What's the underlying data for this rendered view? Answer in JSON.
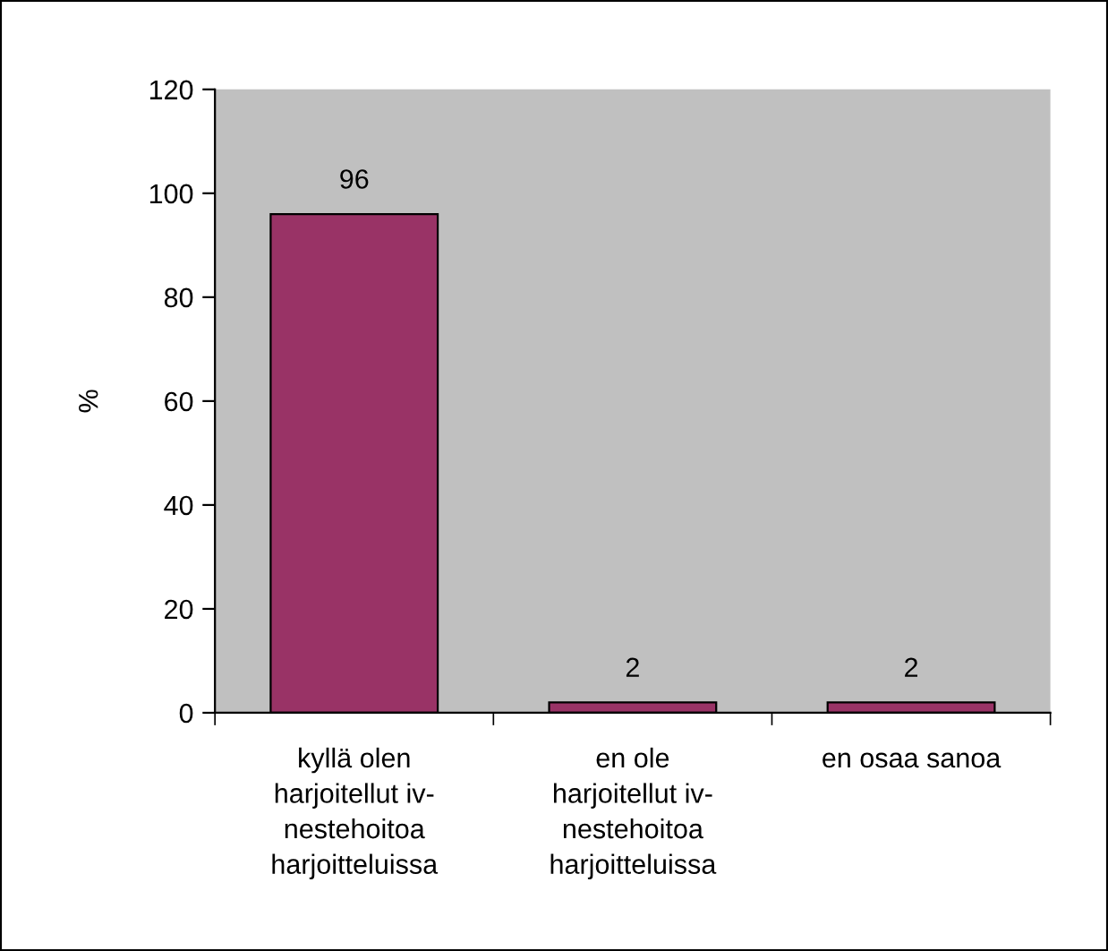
{
  "chart_data": {
    "type": "bar",
    "categories": [
      "kyllä olen\nharjoitellut iv-\nnestehoitoa\nharjoitteluissa",
      "en ole\nharjoitellut iv-\nnestehoitoa\nharjoitteluissa",
      "en osaa sanoa"
    ],
    "values": [
      96,
      2,
      2
    ],
    "color": "#993366",
    "ylabel": "%",
    "ylim": [
      0,
      120
    ],
    "yticks": [
      0,
      20,
      40,
      60,
      80,
      100,
      120
    ],
    "data_labels": true,
    "grid": false,
    "legend": false
  }
}
